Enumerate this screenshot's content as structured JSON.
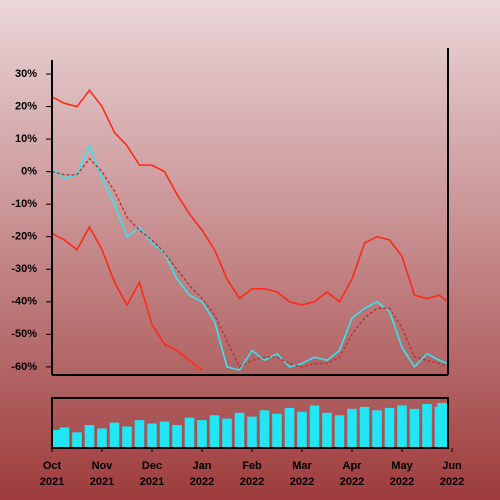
{
  "chart_data": [
    {
      "type": "line",
      "x": [
        0,
        0.25,
        0.5,
        0.75,
        1,
        1.25,
        1.5,
        1.75,
        2,
        2.25,
        2.5,
        2.75,
        3,
        3.25,
        3.5,
        3.75,
        4,
        4.25,
        4.5,
        4.75,
        5,
        5.25,
        5.5,
        5.75,
        6,
        6.25,
        6.5,
        6.75,
        7,
        7.25,
        7.5,
        7.75,
        7.92
      ],
      "xlim": [
        0,
        7.92
      ],
      "ylim": [
        -62.5,
        38
      ],
      "yticks": [
        {
          "value": 30,
          "label": "30%"
        },
        {
          "value": 20,
          "label": "20%"
        },
        {
          "value": 10,
          "label": "10%"
        },
        {
          "value": 0,
          "label": "0%"
        },
        {
          "value": -10,
          "label": "-10%"
        },
        {
          "value": -20,
          "label": "-20%"
        },
        {
          "value": -30,
          "label": "-30%"
        },
        {
          "value": -40,
          "label": "-40%"
        },
        {
          "value": -50,
          "label": "-50%"
        },
        {
          "value": -60,
          "label": "-60%"
        }
      ],
      "xticks": [
        {
          "value": 0,
          "label": "Oct",
          "sublabel": "2021"
        },
        {
          "value": 1,
          "label": "Nov",
          "sublabel": "2021"
        },
        {
          "value": 2,
          "label": "Dec",
          "sublabel": "2021"
        },
        {
          "value": 3,
          "label": "Jan",
          "sublabel": "2022"
        },
        {
          "value": 4,
          "label": "Feb",
          "sublabel": "2022"
        },
        {
          "value": 5,
          "label": "Mar",
          "sublabel": "2022"
        },
        {
          "value": 6,
          "label": "Apr",
          "sublabel": "2022"
        },
        {
          "value": 7,
          "label": "May",
          "sublabel": "2022"
        },
        {
          "value": 8,
          "label": "Jun",
          "sublabel": "2022"
        }
      ],
      "series": [
        {
          "color": "#ff2a1a",
          "dashed": false,
          "values": [
            23,
            21,
            20,
            25,
            20,
            12,
            8,
            2,
            2,
            0,
            -7,
            -13,
            -18,
            -24,
            -33,
            -39,
            -36,
            -36,
            -37,
            -40,
            -41,
            -40,
            -37,
            -40,
            -33,
            -22,
            -20,
            -21,
            -26,
            -38,
            -39,
            -38,
            -40
          ]
        },
        {
          "color": "#ff2a1a",
          "dashed": false,
          "values": [
            -19,
            -21,
            -24,
            -17,
            -24,
            -34,
            -41,
            -34,
            -47,
            -53,
            -55,
            -58,
            -61,
            null,
            null,
            null,
            null,
            null,
            null,
            null,
            null,
            null,
            null,
            null,
            null,
            null,
            null,
            null,
            null,
            null,
            null,
            null,
            null
          ]
        },
        {
          "color": "#33e4f2",
          "dashed": false,
          "values": [
            1,
            -2,
            -1,
            8,
            -2,
            -10,
            -20,
            -17,
            -22,
            -25,
            -33,
            -38,
            -40,
            -46,
            -60,
            -61,
            -55,
            -58,
            -56,
            -60,
            -59,
            -57,
            -58,
            -55,
            -45,
            -42,
            -40,
            -43,
            -54,
            -60,
            -56,
            -58,
            -59
          ]
        },
        {
          "color": "#b83030",
          "dashed": true,
          "values": [
            0,
            -1,
            -1,
            4,
            0,
            -6,
            -14,
            -18,
            -21,
            -25,
            -30,
            -35,
            -39,
            -44,
            -52,
            -60,
            -58,
            -57,
            -57,
            -59,
            -60,
            -59,
            -59,
            -57,
            -50,
            -45,
            -42,
            -42,
            -48,
            -57,
            -58,
            -59,
            -60
          ]
        }
      ]
    },
    {
      "type": "bar",
      "x": [
        0,
        0.25,
        0.5,
        0.75,
        1,
        1.25,
        1.5,
        1.75,
        2,
        2.25,
        2.5,
        2.75,
        3,
        3.25,
        3.5,
        3.75,
        4,
        4.25,
        4.5,
        4.75,
        5,
        5.25,
        5.5,
        5.75,
        6,
        6.25,
        6.5,
        6.75,
        7,
        7.25,
        7.5,
        7.75,
        7.92
      ],
      "color": "#22e6f5",
      "values": [
        35,
        40,
        30,
        45,
        38,
        50,
        42,
        55,
        48,
        52,
        45,
        60,
        55,
        65,
        58,
        70,
        62,
        75,
        68,
        80,
        72,
        85,
        70,
        65,
        78,
        82,
        75,
        80,
        85,
        78,
        88,
        82,
        90
      ]
    }
  ]
}
